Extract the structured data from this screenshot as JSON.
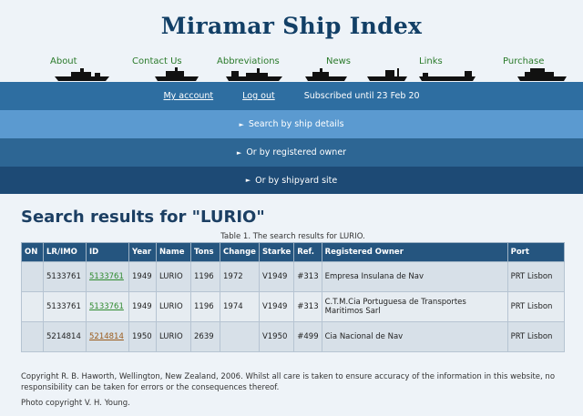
{
  "site": {
    "title": "Miramar Ship Index"
  },
  "topnav": [
    "About",
    "Contact Us",
    "Abbreviations",
    "News",
    "Links",
    "Purchase"
  ],
  "account": {
    "my_account": "My account",
    "log_out": "Log out",
    "subscribed": "Subscribed until 23 Feb 20"
  },
  "search_bars": {
    "ship_details": "Search by ship details",
    "owner": "Or by registered owner",
    "shipyard": "Or by shipyard site"
  },
  "results": {
    "heading": "Search results for \"LURIO\"",
    "caption": "Table 1. The search results for LURIO.",
    "headers": [
      "ON",
      "LR/IMO",
      "ID",
      "Year",
      "Name",
      "Tons",
      "Change",
      "Starke",
      "Ref.",
      "Registered Owner",
      "Port"
    ],
    "rows": [
      {
        "on": "",
        "lr": "5133761",
        "id": "5133761",
        "year": "1949",
        "name": "LURIO",
        "tons": "1196",
        "change": "1972",
        "starke": "V1949",
        "ref": "#313",
        "owner": "Empresa Insulana de Nav",
        "port": "PRT Lisbon"
      },
      {
        "on": "",
        "lr": "5133761",
        "id": "5133761",
        "year": "1949",
        "name": "LURIO",
        "tons": "1196",
        "change": "1974",
        "starke": "V1949",
        "ref": "#313",
        "owner": "C.T.M.Cia Portuguesa de Transportes Maritimos Sarl",
        "port": "PRT Lisbon"
      },
      {
        "on": "",
        "lr": "5214814",
        "id": "5214814",
        "year": "1950",
        "name": "LURIO",
        "tons": "2639",
        "change": "",
        "starke": "V1950",
        "ref": "#499",
        "owner": "Cia Nacional de Nav",
        "port": "PRT Lisbon"
      }
    ]
  },
  "footer": {
    "copyright": "Copyright R. B. Haworth, Wellington, New Zealand, 2006. Whilst all care is taken to ensure accuracy of the information in this website, no responsibility can be taken for errors or the consequences thereof.",
    "photo": "Photo copyright V. H. Young."
  },
  "colors": {
    "title": "#123f66",
    "nav_link": "#2a7a2a",
    "bar_dark": "#1d4a75",
    "bar_light": "#5b9ad0",
    "table_header": "#25557f"
  }
}
